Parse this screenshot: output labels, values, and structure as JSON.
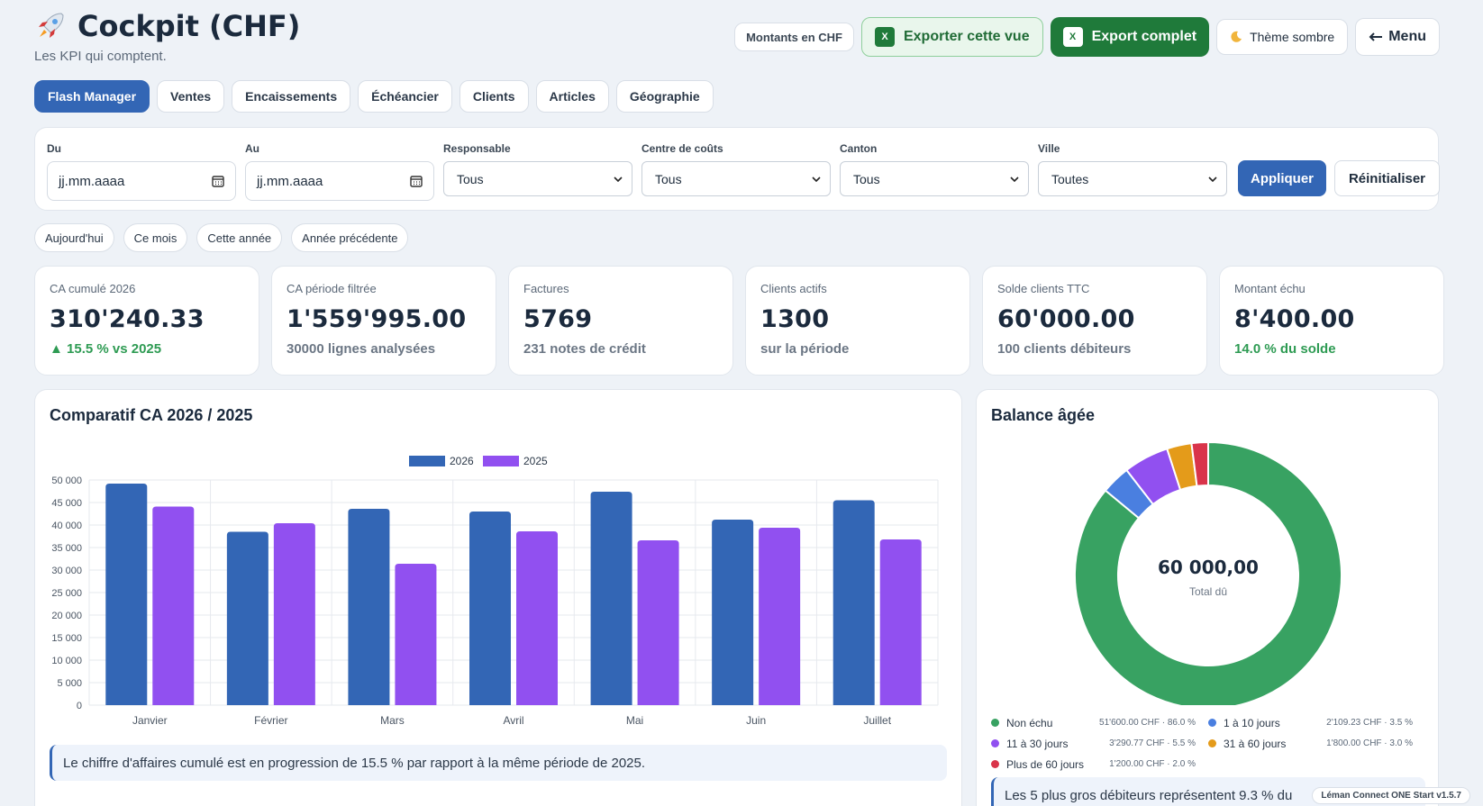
{
  "header": {
    "title": "Cockpit (CHF)",
    "subtitle": "Les KPI qui comptent.",
    "rocket_icon": "rocket-icon"
  },
  "actions": {
    "currency_label": "Montants en CHF",
    "export_view_label": "Exporter cette vue",
    "export_full_label": "Export complet",
    "theme_label": "Thème sombre",
    "menu_label": "Menu",
    "excel_icon_text": "X"
  },
  "tabs": [
    {
      "label": "Flash Manager",
      "active": true
    },
    {
      "label": "Ventes"
    },
    {
      "label": "Encaissements"
    },
    {
      "label": "Échéancier"
    },
    {
      "label": "Clients"
    },
    {
      "label": "Articles"
    },
    {
      "label": "Géographie"
    }
  ],
  "filters": {
    "du": {
      "label": "Du",
      "placeholder": "jj.mm.aaaa"
    },
    "au": {
      "label": "Au",
      "placeholder": "jj.mm.aaaa"
    },
    "responsable": {
      "label": "Responsable",
      "value": "Tous"
    },
    "centre": {
      "label": "Centre de coûts",
      "value": "Tous"
    },
    "canton": {
      "label": "Canton",
      "value": "Tous"
    },
    "ville": {
      "label": "Ville",
      "value": "Toutes"
    },
    "apply_label": "Appliquer",
    "reset_label": "Réinitialiser"
  },
  "quick_ranges": [
    "Aujourd'hui",
    "Ce mois",
    "Cette année",
    "Année précédente"
  ],
  "kpis": [
    {
      "label": "CA cumulé 2026",
      "value": "310'240.33",
      "sub": "▲ 15.5 % vs 2025",
      "tone": "green"
    },
    {
      "label": "CA période filtrée",
      "value": "1'559'995.00",
      "sub": "30000 lignes analysées",
      "tone": "gray"
    },
    {
      "label": "Factures",
      "value": "5769",
      "sub": "231 notes de crédit",
      "tone": "gray"
    },
    {
      "label": "Clients actifs",
      "value": "1300",
      "sub": "sur la période",
      "tone": "gray"
    },
    {
      "label": "Solde clients TTC",
      "value": "60'000.00",
      "sub": "100 clients débiteurs",
      "tone": "gray"
    },
    {
      "label": "Montant échu",
      "value": "8'400.00",
      "sub": "14.0 % du solde",
      "tone": "green"
    }
  ],
  "chart_panel": {
    "title": "Comparatif CA 2026 / 2025",
    "note": "Le chiffre d'affaires cumulé est en progression de 15.5 % par rapport à la même période de 2025."
  },
  "chart_data": [
    {
      "type": "bar",
      "title": "Comparatif CA 2026 / 2025",
      "categories": [
        "Janvier",
        "Février",
        "Mars",
        "Avril",
        "Mai",
        "Juin",
        "Juillet"
      ],
      "series": [
        {
          "name": "2026",
          "color": "#3366b5",
          "values": [
            49200,
            38500,
            43600,
            43000,
            47400,
            41200,
            45500
          ]
        },
        {
          "name": "2025",
          "color": "#9150f0",
          "values": [
            44100,
            40400,
            31400,
            38600,
            36600,
            39400,
            36800
          ]
        }
      ],
      "ylim": [
        0,
        50000
      ],
      "yticks": [
        "0",
        "5 000",
        "10 000",
        "15 000",
        "20 000",
        "25 000",
        "30 000",
        "35 000",
        "40 000",
        "45 000",
        "50 000"
      ],
      "legend": "top-center",
      "grid": true
    },
    {
      "type": "pie",
      "title": "Balance âgée",
      "center_value": "60 000,00",
      "center_label": "Total dû",
      "slices": [
        {
          "name": "Non échu",
          "value": 51600.0,
          "label": "51'600.00 CHF · 86.0 %",
          "color": "#38a262"
        },
        {
          "name": "1 à 10 jours",
          "value": 2109.23,
          "label": "2'109.23 CHF · 3.5 %",
          "color": "#4a7fe0"
        },
        {
          "name": "11 à 30 jours",
          "value": 3290.77,
          "label": "3'290.77 CHF · 5.5 %",
          "color": "#9150f0"
        },
        {
          "name": "31 à 60 jours",
          "value": 1800.0,
          "label": "1'800.00 CHF · 3.0 %",
          "color": "#e49b1a"
        },
        {
          "name": "Plus de 60 jours",
          "value": 1200.0,
          "label": "1'200.00 CHF · 2.0 %",
          "color": "#d9344a"
        }
      ]
    }
  ],
  "aged_panel": {
    "title": "Balance âgée",
    "note": "Les 5 plus gros débiteurs représentent 9.3 % du"
  },
  "footer": {
    "version": "Léman Connect ONE Start v1.5.7"
  }
}
